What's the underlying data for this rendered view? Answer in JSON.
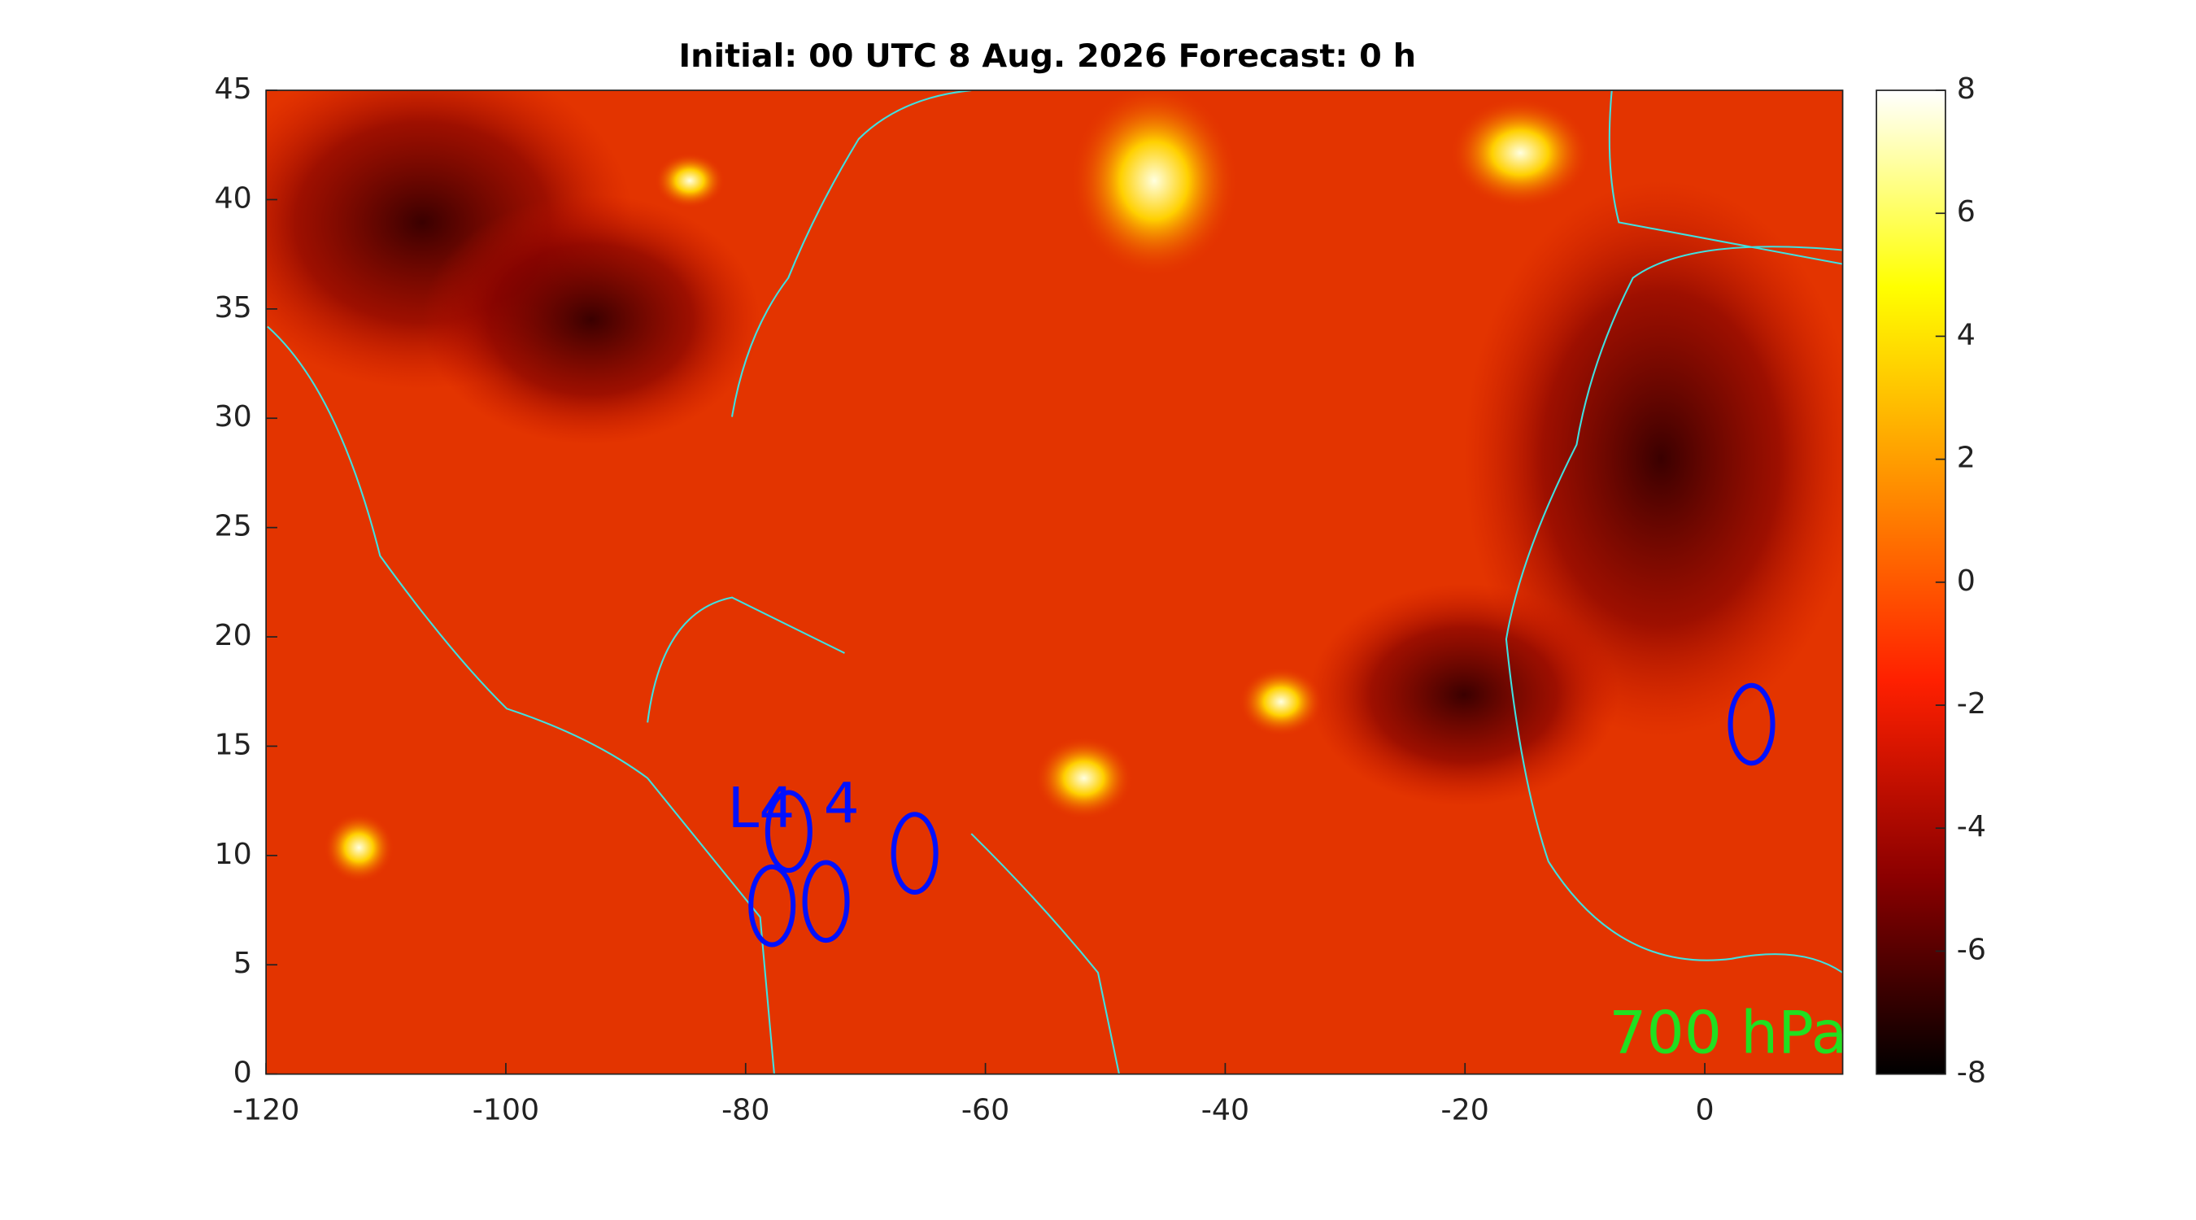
{
  "chart_data": {
    "type": "heatmap",
    "title": "Initial: 00 UTC 8 Aug. 2026 Forecast: 0 h",
    "xlim": [
      -120,
      11.5
    ],
    "xticks": [
      -120,
      -100,
      -80,
      -60,
      -40,
      -20,
      0
    ],
    "ylim": [
      0,
      45
    ],
    "yticks": [
      0,
      5,
      10,
      15,
      20,
      25,
      30,
      35,
      40,
      45
    ],
    "colorbar": {
      "lim": [
        -8,
        8
      ],
      "ticks": [
        -8,
        -6,
        -4,
        -2,
        0,
        2,
        4,
        6,
        8
      ],
      "colormap": [
        "#000000",
        "#8b0000",
        "#ff2000",
        "#ff9000",
        "#ffff00",
        "#ffffff"
      ]
    },
    "level_label": "700 hPa",
    "annotations": [
      {
        "text": "L4",
        "x": -81.5,
        "y": 12
      },
      {
        "text": "4",
        "x": -73.5,
        "y": 12.2
      }
    ],
    "markers": {
      "color": "#0010ff",
      "x": [
        3.9,
        -77.8,
        -73.3,
        -65.9,
        -76.4
      ],
      "y": [
        16.0,
        7.7,
        7.9,
        10.1,
        11.1
      ]
    }
  }
}
